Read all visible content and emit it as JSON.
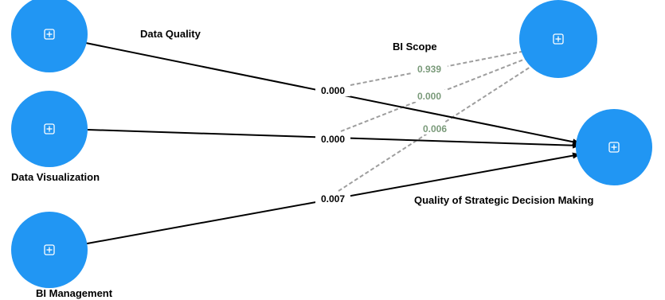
{
  "colors": {
    "node": "#2196f3",
    "path": "#000000",
    "moderation_path": "#9e9e9e",
    "moderation_value": "#7a9a7a"
  },
  "nodes": {
    "data_quality": {
      "label": "Data Quality",
      "icon": "expand-icon"
    },
    "data_visualization": {
      "label": "Data Visualization",
      "icon": "expand-icon"
    },
    "bi_management": {
      "label": "BI Management",
      "icon": "expand-icon"
    },
    "bi_scope": {
      "label": "BI Scope",
      "icon": "expand-icon"
    },
    "quality_decision": {
      "label": "Quality of Strategic Decision Making",
      "icon": "expand-icon"
    }
  },
  "paths": {
    "data_quality_to_decision": "0.000",
    "data_visualization_to_decision": "0.000",
    "bi_management_to_decision": "0.007"
  },
  "moderation_paths": {
    "scope_x_quality": "0.939",
    "scope_x_visualization": "0.000",
    "scope_x_management": "0.006"
  }
}
